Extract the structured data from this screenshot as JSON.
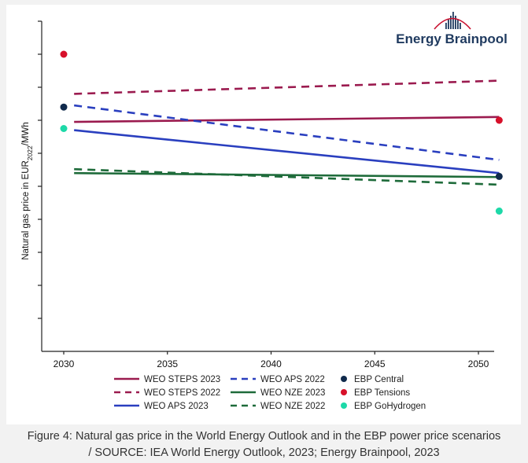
{
  "brand": {
    "name": "Energy Brainpool",
    "color": "#1f3a5f",
    "accent": "#c8102e"
  },
  "caption": {
    "line1": "Figure 4: Natural gas price in the World Energy Outlook and in the EBP power price scenarios",
    "line2": "/ SOURCE: IEA World Energy Outlook, 2023; Energy Brainpool, 2023"
  },
  "chart_data": {
    "type": "line",
    "title": "",
    "xlabel": "",
    "ylabel": "Natural gas price in EUR2022/MWh",
    "ylabel_parts": {
      "main": "Natural gas price in EUR",
      "sub": "2022",
      "unit": "/MWh"
    },
    "x_ticks": [
      "2030",
      "2035",
      "2040",
      "2045",
      "2050"
    ],
    "xlim": [
      2030,
      2051
    ],
    "ylim": [
      0,
      10
    ],
    "y_ticks": [
      1,
      2,
      3,
      4,
      5,
      6,
      7,
      8,
      9,
      10
    ],
    "y_tick_labels_shown": false,
    "grid": false,
    "legend_position": "bottom",
    "series": [
      {
        "name": "WEO STEPS 2023",
        "color": "#9b1b4f",
        "style": "solid",
        "x": [
          2030.5,
          2051
        ],
        "y": [
          6.95,
          7.1
        ]
      },
      {
        "name": "WEO STEPS 2022",
        "color": "#9b1b4f",
        "style": "dashed",
        "x": [
          2030.5,
          2051
        ],
        "y": [
          7.8,
          8.2
        ]
      },
      {
        "name": "WEO APS 2023",
        "color": "#2a3fbf",
        "style": "solid",
        "x": [
          2030.5,
          2051
        ],
        "y": [
          6.7,
          5.4
        ]
      },
      {
        "name": "WEO APS 2022",
        "color": "#2a3fbf",
        "style": "dashed",
        "x": [
          2030.5,
          2051
        ],
        "y": [
          7.45,
          5.8
        ]
      },
      {
        "name": "WEO NZE 2023",
        "color": "#1e6b3a",
        "style": "solid",
        "x": [
          2030.5,
          2051
        ],
        "y": [
          5.4,
          5.28
        ]
      },
      {
        "name": "WEO NZE 2022",
        "color": "#1e6b3a",
        "style": "dashed",
        "x": [
          2030.5,
          2051
        ],
        "y": [
          5.52,
          5.05
        ]
      }
    ],
    "points": [
      {
        "name": "EBP Central",
        "color": "#102a4c",
        "x": [
          2030,
          2051
        ],
        "y": [
          7.4,
          5.3
        ]
      },
      {
        "name": "EBP Tensions",
        "color": "#d7102a",
        "x": [
          2030,
          2051
        ],
        "y": [
          9.0,
          7.0
        ]
      },
      {
        "name": "EBP GoHydrogen",
        "color": "#1dd9a8",
        "x": [
          2030,
          2051
        ],
        "y": [
          6.75,
          4.25
        ]
      }
    ],
    "legend": [
      {
        "label": "WEO STEPS 2023",
        "kind": "solid",
        "color": "#9b1b4f"
      },
      {
        "label": "WEO STEPS 2022",
        "kind": "dashed",
        "color": "#9b1b4f"
      },
      {
        "label": "WEO APS 2023",
        "kind": "solid",
        "color": "#2a3fbf"
      },
      {
        "label": "WEO APS 2022",
        "kind": "dashed",
        "color": "#2a3fbf"
      },
      {
        "label": "WEO NZE 2023",
        "kind": "solid",
        "color": "#1e6b3a"
      },
      {
        "label": "WEO NZE 2022",
        "kind": "dashed",
        "color": "#1e6b3a"
      },
      {
        "label": "EBP Central",
        "kind": "dot",
        "color": "#102a4c"
      },
      {
        "label": "EBP Tensions",
        "kind": "dot",
        "color": "#d7102a"
      },
      {
        "label": "EBP GoHydrogen",
        "kind": "dot",
        "color": "#1dd9a8"
      }
    ]
  }
}
